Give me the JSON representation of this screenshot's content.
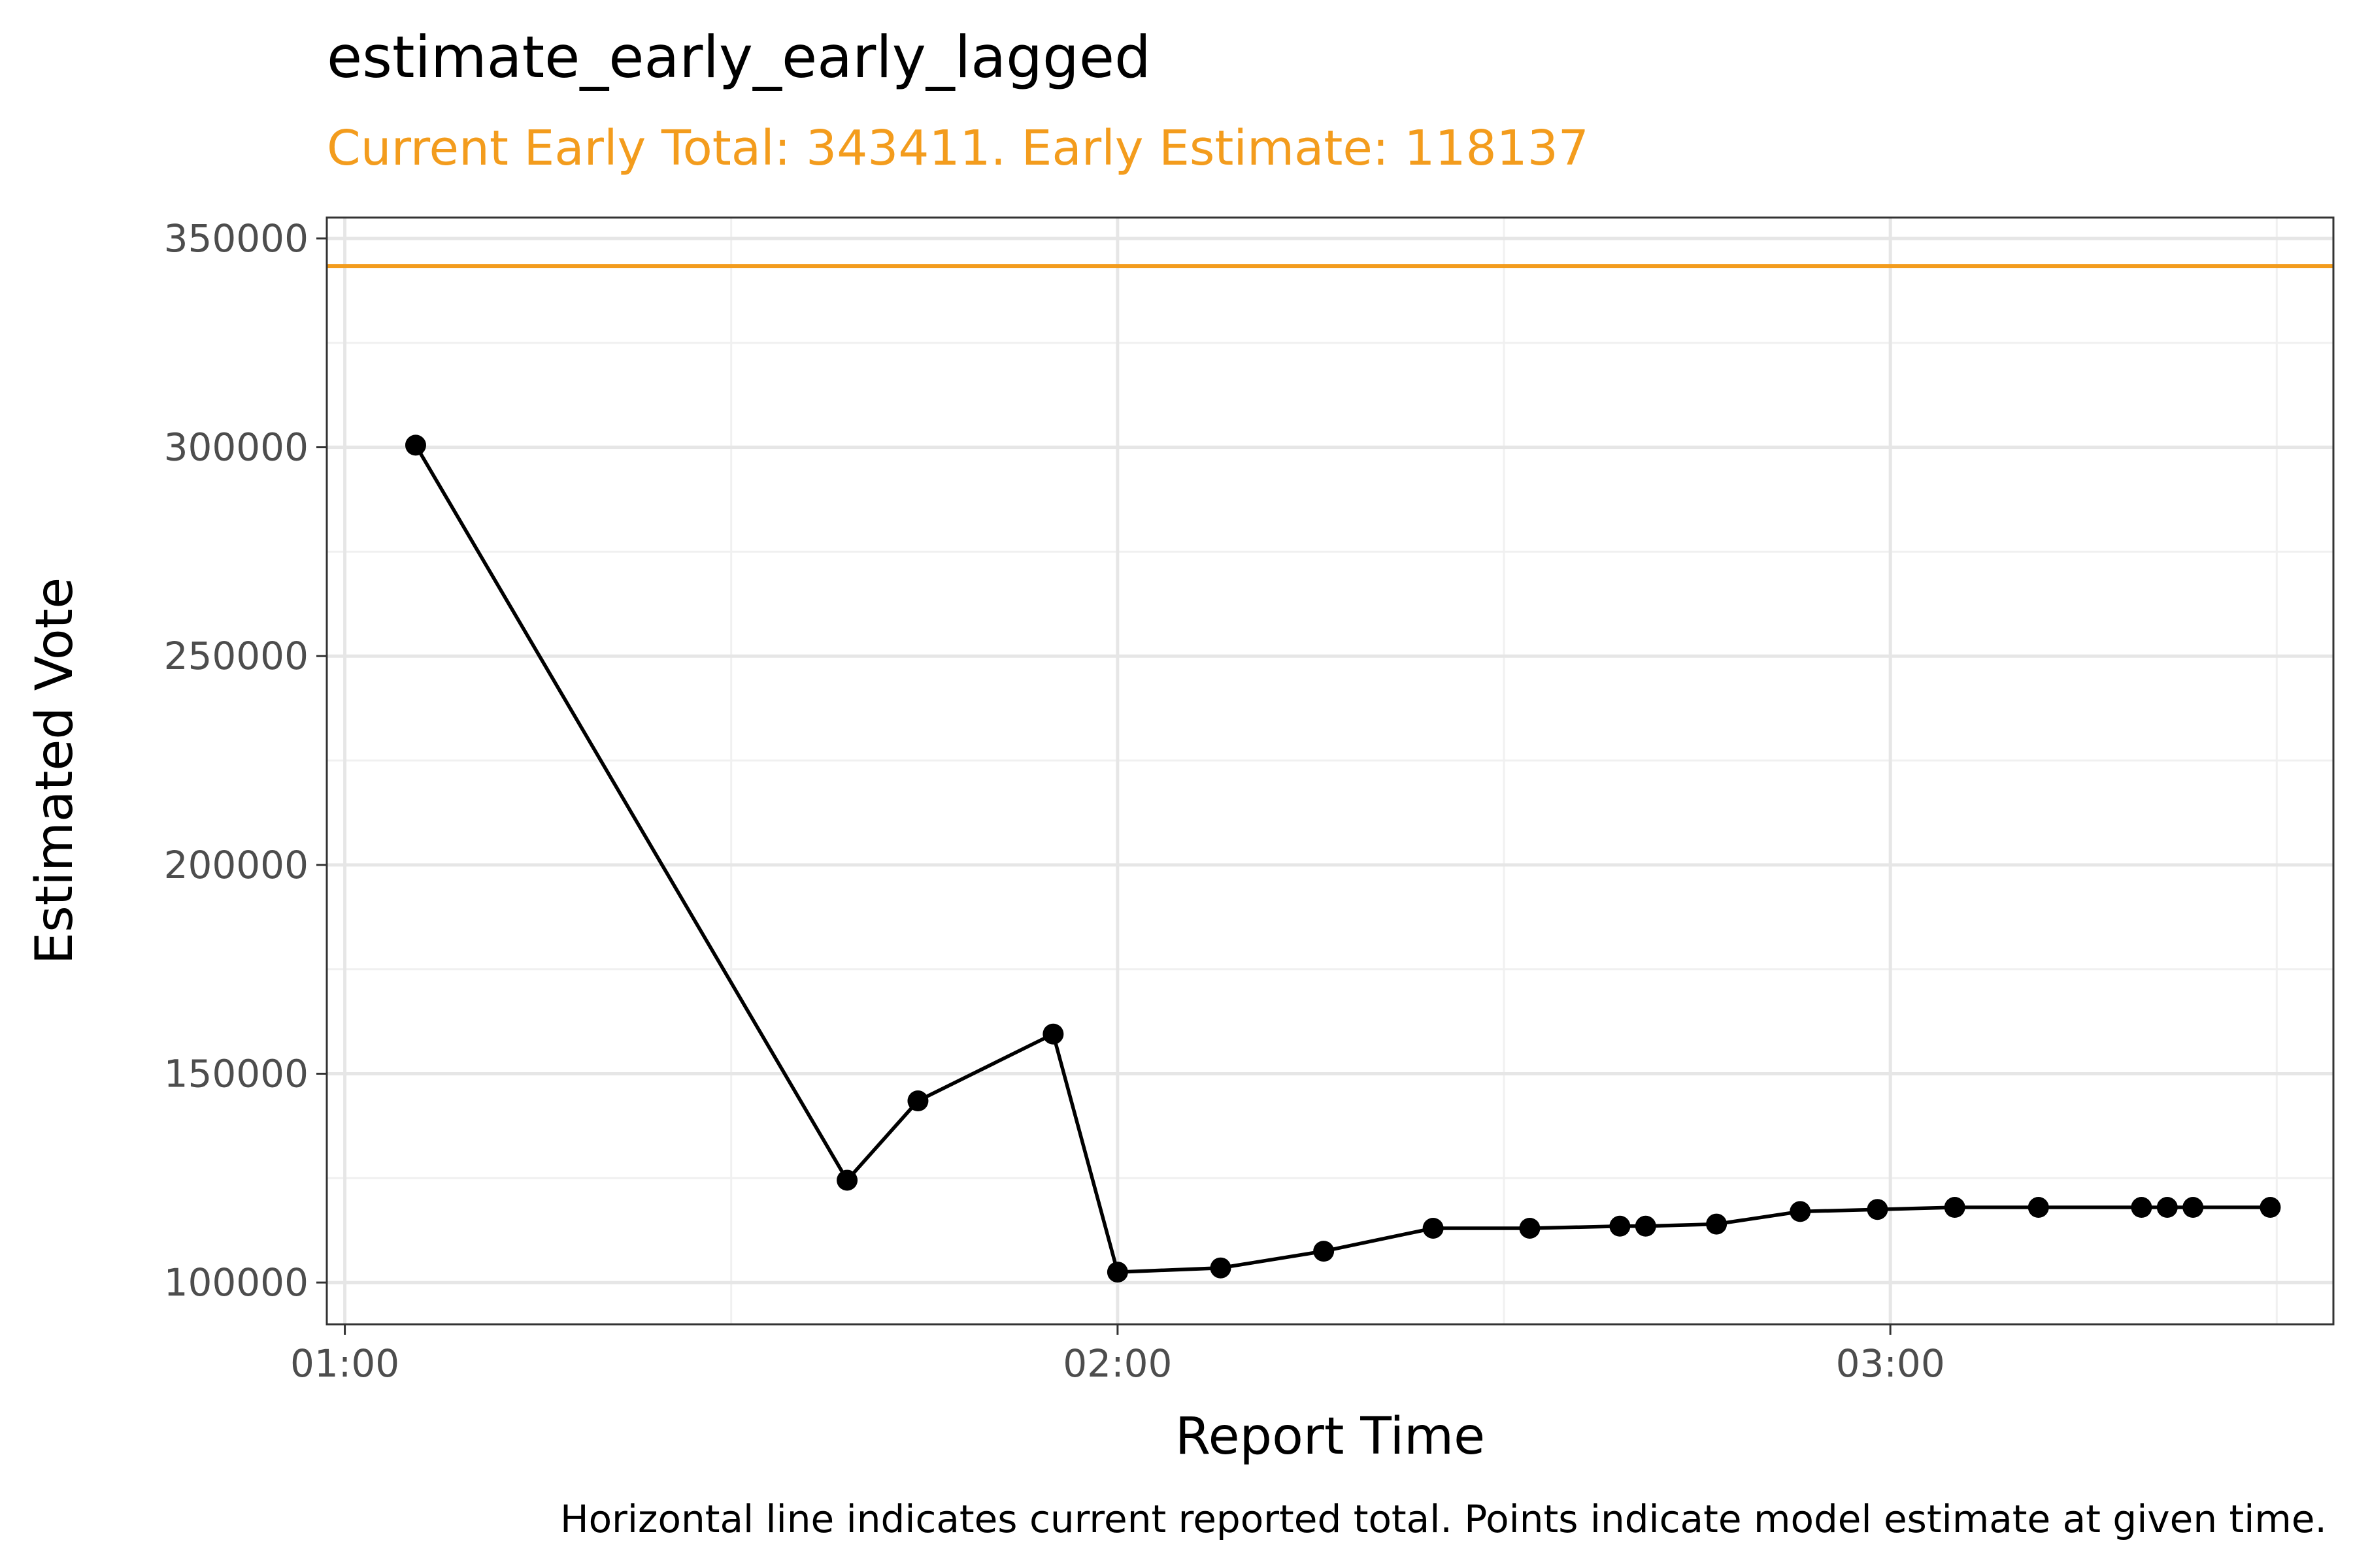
{
  "chart_data": {
    "type": "line",
    "title": "estimate_early_early_lagged",
    "subtitle": "Current Early Total: 343411. Early Estimate: 118137",
    "xlabel": "Report Time",
    "ylabel": "Estimated Vote",
    "caption": "Horizontal line indicates current reported total. Points indicate model estimate at given time.",
    "x_unit": "minutes after 01:00",
    "x_ticks": [
      {
        "label": "01:00",
        "value": 0
      },
      {
        "label": "02:00",
        "value": 60
      },
      {
        "label": "03:00",
        "value": 120
      }
    ],
    "y_ticks": [
      100000,
      150000,
      200000,
      250000,
      300000,
      350000
    ],
    "xlim": [
      -1.4,
      154.4
    ],
    "ylim": [
      90000,
      355000
    ],
    "grid": true,
    "reference_line": {
      "value": 343411,
      "color": "#f39c1d"
    },
    "accent_color": "#f39c1d",
    "series_color": "#000000",
    "series": [
      {
        "x": [
          5.5,
          39,
          44.5,
          55,
          60,
          68,
          76,
          84.5,
          92,
          99,
          101,
          106.5,
          113,
          119,
          125,
          131.5,
          139.5,
          141.5,
          143.5,
          149.5
        ],
        "y": [
          300500,
          124500,
          143500,
          159500,
          102500,
          103500,
          107500,
          113000,
          113000,
          113500,
          113500,
          114000,
          117000,
          117500,
          118000,
          118000,
          118000,
          118000,
          118000,
          118000
        ]
      }
    ]
  }
}
